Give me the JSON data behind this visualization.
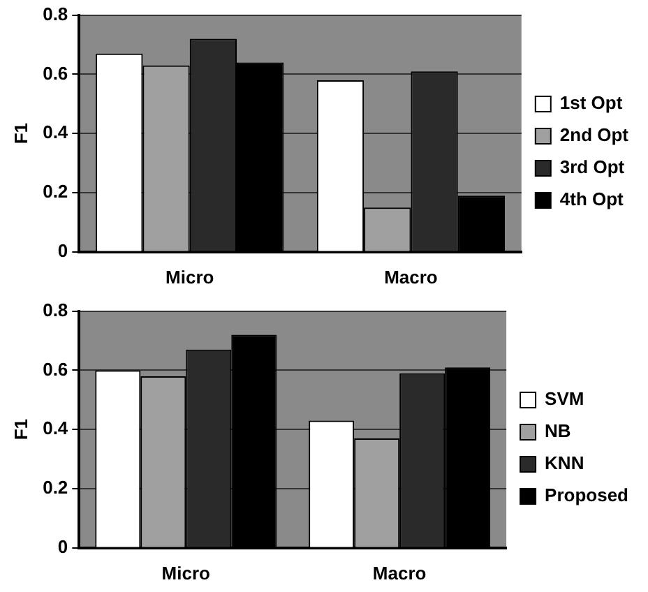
{
  "chart_data": [
    {
      "type": "bar",
      "categories": [
        "Micro",
        "Macro"
      ],
      "ylabel": "F1",
      "ylim": [
        0,
        0.8
      ],
      "yticks": [
        0,
        0.2,
        0.4,
        0.6,
        0.8
      ],
      "grid": "y",
      "legend": "right",
      "series": [
        {
          "name": "1st Opt",
          "color": "#ffffff",
          "values": [
            0.67,
            0.58
          ]
        },
        {
          "name": "2nd Opt",
          "color": "#a0a0a0",
          "values": [
            0.63,
            0.15
          ]
        },
        {
          "name": "3rd Opt",
          "color": "#2a2a2a",
          "values": [
            0.72,
            0.61
          ]
        },
        {
          "name": "4th Opt",
          "color": "#000000",
          "values": [
            0.64,
            0.19
          ]
        }
      ]
    },
    {
      "type": "bar",
      "categories": [
        "Micro",
        "Macro"
      ],
      "ylabel": "F1",
      "ylim": [
        0,
        0.8
      ],
      "yticks": [
        0,
        0.2,
        0.4,
        0.6,
        0.8
      ],
      "grid": "y",
      "legend": "right",
      "series": [
        {
          "name": "SVM",
          "color": "#ffffff",
          "values": [
            0.6,
            0.43
          ]
        },
        {
          "name": "NB",
          "color": "#a0a0a0",
          "values": [
            0.58,
            0.37
          ]
        },
        {
          "name": "KNN",
          "color": "#2a2a2a",
          "values": [
            0.67,
            0.59
          ]
        },
        {
          "name": "Proposed",
          "color": "#000000",
          "values": [
            0.72,
            0.61
          ]
        }
      ]
    }
  ]
}
